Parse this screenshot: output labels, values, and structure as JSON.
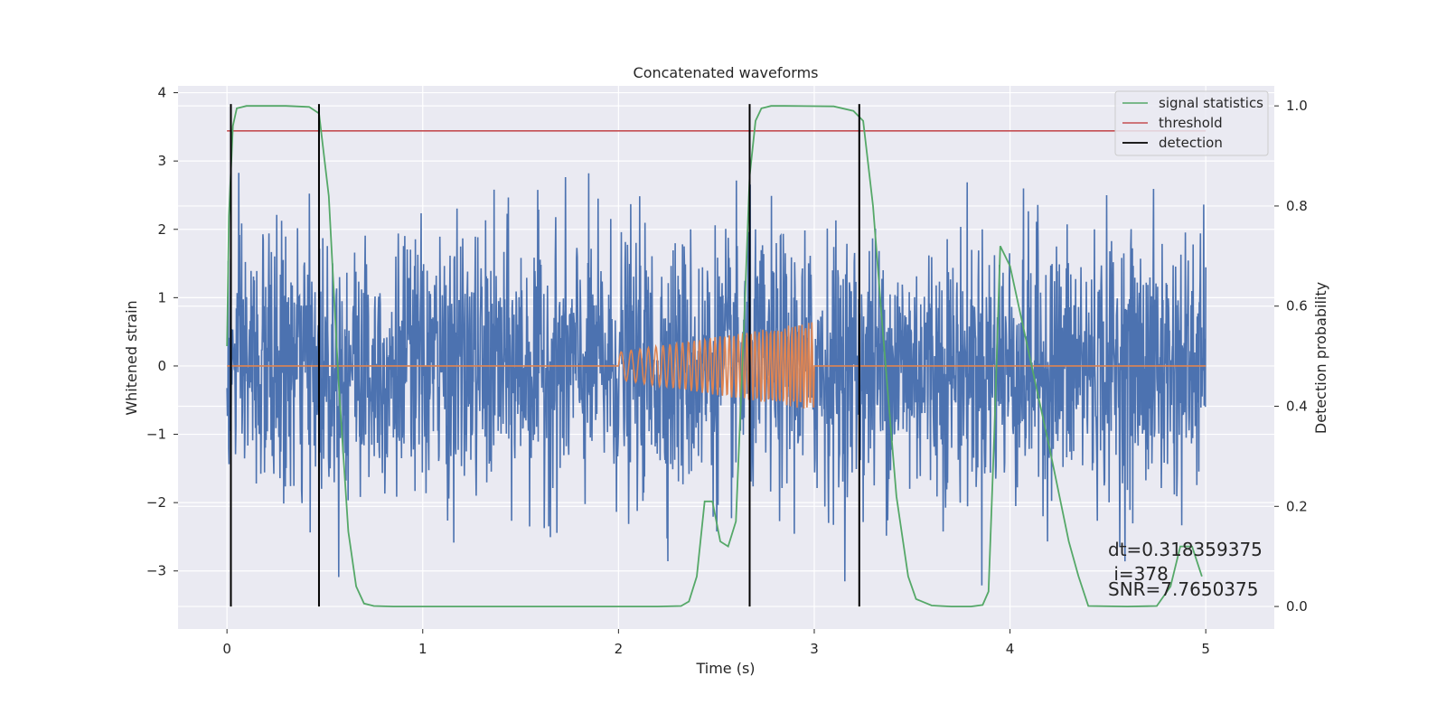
{
  "chart_data": {
    "type": "line",
    "title": "Concatenated waveforms",
    "xlabel": "Time (s)",
    "ylabel_left": "Whitened strain",
    "ylabel_right": "Detection probability",
    "xlim": [
      -0.25,
      5.35
    ],
    "ylim_left": [
      -3.85,
      4.1
    ],
    "ylim_right": [
      -0.045,
      1.04
    ],
    "x_ticks": [
      0,
      1,
      2,
      3,
      4,
      5
    ],
    "x_tick_labels": [
      "0",
      "1",
      "2",
      "3",
      "4",
      "5"
    ],
    "y_left_ticks": [
      -3,
      -2,
      -1,
      0,
      1,
      2,
      3,
      4
    ],
    "y_left_tick_labels": [
      "−3",
      "−2",
      "−1",
      "0",
      "1",
      "2",
      "3",
      "4"
    ],
    "y_right_ticks": [
      0.0,
      0.2,
      0.4,
      0.6,
      0.8,
      1.0
    ],
    "y_right_tick_labels": [
      "0.0",
      "0.2",
      "0.4",
      "0.6",
      "0.8",
      "1.0"
    ],
    "grid": true,
    "legend_position": "top-right",
    "series": [
      {
        "name": "",
        "kind": "whitened strain noise",
        "axis": "left",
        "color": "#4c72b0",
        "x_range": [
          0,
          5
        ],
        "approx_amplitude_envelope": [
          -3.5,
          3.75
        ]
      },
      {
        "name": "",
        "kind": "injected chirp waveform",
        "axis": "left",
        "color": "#dd8452",
        "x_range": [
          0,
          5
        ],
        "chirp_interval": [
          2.0,
          3.0
        ],
        "amplitude_start": 0.2,
        "amplitude_end": 0.65
      },
      {
        "name": "signal statistics",
        "axis": "right",
        "color": "#55a868",
        "x": [
          0.0,
          0.01,
          0.03,
          0.05,
          0.1,
          0.3,
          0.42,
          0.47,
          0.52,
          0.57,
          0.62,
          0.66,
          0.7,
          0.75,
          0.85,
          1.5,
          2.2,
          2.32,
          2.36,
          2.4,
          2.44,
          2.48,
          2.52,
          2.56,
          2.6,
          2.64,
          2.67,
          2.7,
          2.73,
          2.78,
          2.85,
          3.1,
          3.2,
          3.25,
          3.3,
          3.35,
          3.42,
          3.48,
          3.52,
          3.6,
          3.7,
          3.8,
          3.86,
          3.89,
          3.92,
          3.95,
          4.0,
          4.1,
          4.2,
          4.3,
          4.35,
          4.4,
          4.6,
          4.75,
          4.82,
          4.87,
          4.93,
          4.98
        ],
        "values": [
          0.52,
          0.78,
          0.96,
          0.995,
          1.0,
          1.0,
          0.998,
          0.985,
          0.82,
          0.45,
          0.15,
          0.04,
          0.006,
          0.001,
          0.0,
          0.0,
          0.0,
          0.001,
          0.01,
          0.06,
          0.21,
          0.21,
          0.13,
          0.12,
          0.17,
          0.55,
          0.86,
          0.97,
          0.995,
          1.0,
          1.0,
          0.999,
          0.99,
          0.97,
          0.8,
          0.55,
          0.22,
          0.06,
          0.015,
          0.002,
          0.0,
          0.0,
          0.003,
          0.03,
          0.35,
          0.72,
          0.68,
          0.5,
          0.32,
          0.13,
          0.06,
          0.001,
          0.0,
          0.001,
          0.04,
          0.12,
          0.12,
          0.06
        ]
      },
      {
        "name": "threshold",
        "axis": "right",
        "color": "#c44e52",
        "x": [
          0,
          5
        ],
        "values": [
          0.95,
          0.95
        ]
      },
      {
        "name": "detection",
        "axis": "right",
        "color": "#000000",
        "type": "vertical_lines",
        "x": [
          0.02,
          0.47,
          2.67,
          3.23
        ],
        "y_range": [
          0.0,
          1.0
        ]
      }
    ],
    "annotations": [
      "dt=0.318359375",
      " i=378",
      "SNR=7.7650375"
    ]
  },
  "colors": {
    "axes_bg": "#eaeaf2",
    "grid": "#ffffff",
    "text": "#262626"
  }
}
